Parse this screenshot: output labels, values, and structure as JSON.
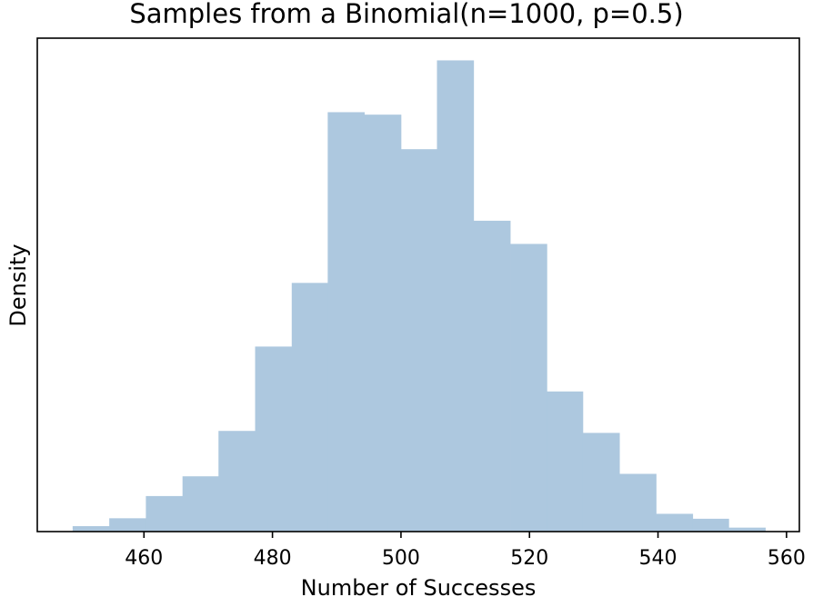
{
  "chart_data": {
    "type": "bar",
    "title": "Samples from a Binomial(n=1000, p=0.5)",
    "xlabel": "Number of Successes",
    "ylabel": "Density",
    "bar_color": "#adc8df",
    "grid": false,
    "bin_edges": [
      448.9,
      454.6,
      460.3,
      466.0,
      471.6,
      477.3,
      483.0,
      488.6,
      494.3,
      500.0,
      505.6,
      511.3,
      517.0,
      522.7,
      528.3,
      534.0,
      539.7,
      545.4,
      551.0,
      556.7
    ],
    "values": [
      0.0011,
      0.0027,
      0.0072,
      0.0112,
      0.0204,
      0.0375,
      0.0504,
      0.085,
      0.0845,
      0.0775,
      0.0955,
      0.063,
      0.0583,
      0.0284,
      0.02,
      0.0117,
      0.0036,
      0.0026,
      0.0008
    ],
    "xlim": [
      443.4,
      562.0
    ],
    "ylim": [
      0,
      0.1
    ],
    "xticks": [
      460,
      480,
      500,
      520,
      540,
      560
    ],
    "xtick_labels": [
      "460",
      "480",
      "500",
      "520",
      "540",
      "560"
    ]
  }
}
